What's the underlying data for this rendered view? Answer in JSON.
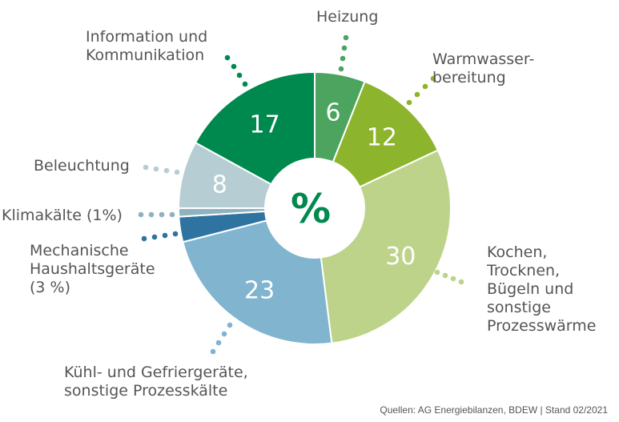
{
  "chart_data": {
    "type": "pie",
    "center_label": "%",
    "slices": [
      {
        "id": "heizung",
        "value": 6,
        "color": "#4ca45f",
        "value_label": "6",
        "label_lines": [
          "Heizung"
        ]
      },
      {
        "id": "warmwasser",
        "value": 12,
        "color": "#8cb42c",
        "value_label": "12",
        "label_lines": [
          "Warmwasser-",
          "bereitung"
        ]
      },
      {
        "id": "kochen",
        "value": 30,
        "color": "#bdd389",
        "value_label": "30",
        "label_lines": [
          "Kochen,",
          "Trocknen,",
          "Bügeln und",
          "sonstige",
          "Prozesswärme"
        ]
      },
      {
        "id": "kuehl",
        "value": 23,
        "color": "#80b4cf",
        "value_label": "23",
        "label_lines": [
          "Kühl- und Gefriergeräte,",
          "sonstige Prozesskälte"
        ]
      },
      {
        "id": "mechanisch",
        "value": 3,
        "color": "#2f73a1",
        "value_label": "",
        "label_lines": [
          "Mechanische",
          "Haushaltsgeräte",
          "(3 %)"
        ]
      },
      {
        "id": "klimakaelte",
        "value": 1,
        "color": "#8fb2c0",
        "value_label": "",
        "label_lines": [
          "Klimakälte (1%)"
        ]
      },
      {
        "id": "beleuchtung",
        "value": 8,
        "color": "#b6cdd4",
        "value_label": "8",
        "label_lines": [
          "Beleuchtung"
        ]
      },
      {
        "id": "info",
        "value": 17,
        "color": "#00894f",
        "value_label": "17",
        "label_lines": [
          "Information und",
          "Kommunikation"
        ]
      }
    ]
  },
  "source_text": "Quellen: AG Energiebilanzen, BDEW | Stand 02/2021"
}
